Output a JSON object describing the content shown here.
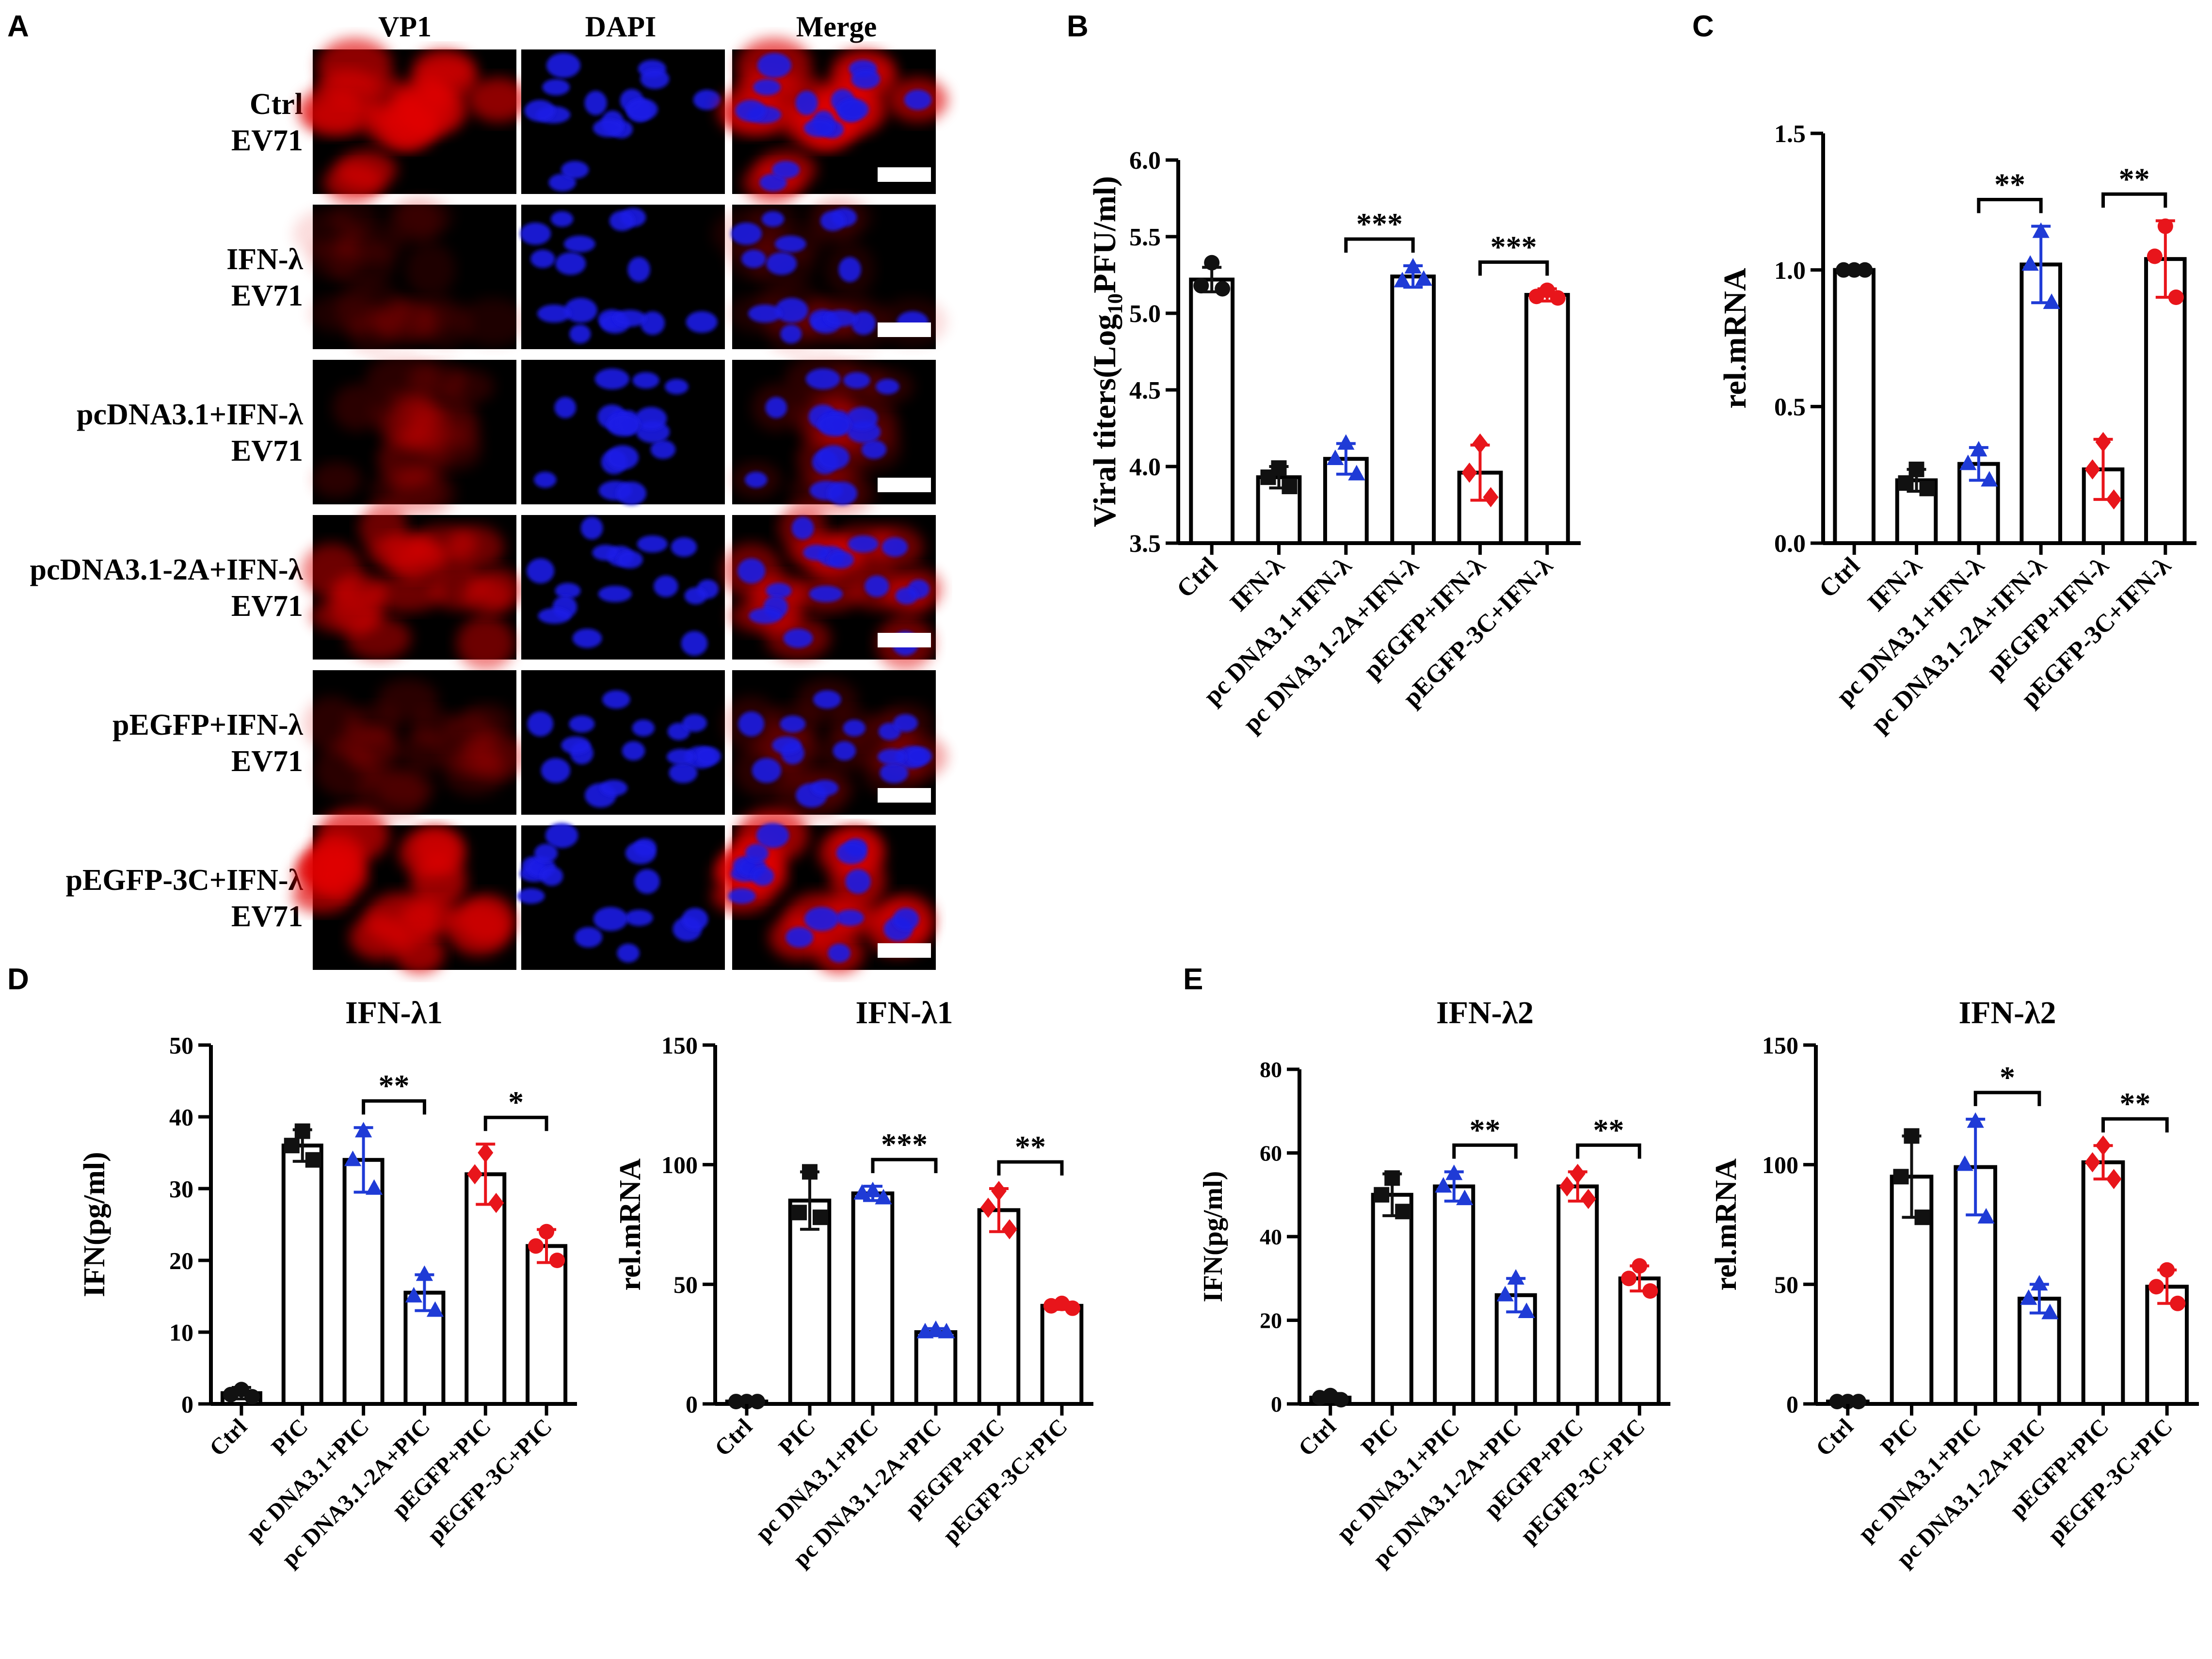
{
  "panel_letters": [
    "A",
    "B",
    "C",
    "D",
    "E"
  ],
  "colors": {
    "vp1": "#e00000",
    "dapi": "#1a1ae6",
    "blue_points": "#1f3bd6",
    "red_points": "#e8151b",
    "black_points": "#111111",
    "axes": "#000000"
  },
  "microscopy": {
    "columns": [
      "VP1",
      "DAPI",
      "Merge"
    ],
    "rows": [
      {
        "line1": "Ctrl",
        "line2": "EV71",
        "vp1": 0.85,
        "dapi": 0.9
      },
      {
        "line1": "IFN-λ",
        "line2": "EV71",
        "vp1": 0.18,
        "dapi": 0.9
      },
      {
        "line1": "pcDNA3.1+IFN-λ",
        "line2": "EV71",
        "vp1": 0.25,
        "dapi": 0.9
      },
      {
        "line1": "pcDNA3.1-2A+IFN-λ",
        "line2": "EV71",
        "vp1": 0.65,
        "dapi": 0.9
      },
      {
        "line1": "pEGFP+IFN-λ",
        "line2": "EV71",
        "vp1": 0.25,
        "dapi": 0.9
      },
      {
        "line1": "pEGFP-3C+IFN-λ",
        "line2": "EV71",
        "vp1": 0.9,
        "dapi": 0.9
      }
    ]
  },
  "chart_data": [
    {
      "panel": "B",
      "type": "bar",
      "title": "",
      "ylabel": "Viral titers(Log10PFU/ml)",
      "ylabel_parts": [
        "Viral titers(Log",
        "10",
        "PFU/ml)"
      ],
      "ylim": [
        3.5,
        6.0
      ],
      "yticks": [
        3.5,
        4.0,
        4.5,
        5.0,
        5.5,
        6.0
      ],
      "ytick_labels": [
        "3.5",
        "4.0",
        "4.5",
        "5.0",
        "5.5",
        "6.0"
      ],
      "categories": [
        "Ctrl",
        "IFN-λ",
        "pc DNA3.1+IFN-λ",
        "pc DNA3.1-2A+IFN-λ",
        "pEGFP+IFN-λ",
        "pEGFP-3C+IFN-λ"
      ],
      "values": [
        5.22,
        3.93,
        4.05,
        5.24,
        3.96,
        5.12
      ],
      "errors": [
        0.08,
        0.07,
        0.1,
        0.07,
        0.18,
        0.04
      ],
      "points": [
        [
          5.33,
          5.18,
          5.16
        ],
        [
          3.99,
          3.93,
          3.87
        ],
        [
          4.15,
          4.05,
          3.95
        ],
        [
          5.3,
          5.21,
          5.22
        ],
        [
          4.15,
          3.96,
          3.8
        ],
        [
          5.15,
          5.11,
          5.1
        ]
      ],
      "point_colors": [
        "black",
        "black",
        "blue",
        "blue",
        "red",
        "red"
      ],
      "point_shapes": [
        "circle",
        "square",
        "triangle",
        "triangle",
        "diamond",
        "circle"
      ],
      "significance": [
        {
          "from": 3,
          "to": 4,
          "label": "***"
        },
        {
          "from": 5,
          "to": 6,
          "label": "***"
        }
      ]
    },
    {
      "panel": "C",
      "type": "bar",
      "title": "",
      "ylabel": "rel.mRNA",
      "ylim": [
        0.0,
        1.5
      ],
      "yticks": [
        0.0,
        0.5,
        1.0,
        1.5
      ],
      "ytick_labels": [
        "0.0",
        "0.5",
        "1.0",
        "1.5"
      ],
      "categories": [
        "Ctrl",
        "IFN-λ",
        "pc DNA3.1+IFN-λ",
        "pc DNA3.1-2A+IFN-λ",
        "pEGFP+IFN-λ",
        "pEGFP-3C+IFN-λ"
      ],
      "values": [
        1.0,
        0.23,
        0.29,
        1.02,
        0.27,
        1.04
      ],
      "errors": [
        0.01,
        0.04,
        0.06,
        0.14,
        0.11,
        0.14
      ],
      "points": [
        [
          1.0,
          1.0,
          1.0
        ],
        [
          0.27,
          0.22,
          0.2
        ],
        [
          0.34,
          0.29,
          0.23
        ],
        [
          1.14,
          1.02,
          0.88
        ],
        [
          0.37,
          0.27,
          0.16
        ],
        [
          1.16,
          1.05,
          0.9
        ]
      ],
      "point_colors": [
        "black",
        "black",
        "blue",
        "blue",
        "red",
        "red"
      ],
      "point_shapes": [
        "circle",
        "square",
        "triangle",
        "triangle",
        "diamond",
        "circle"
      ],
      "significance": [
        {
          "from": 3,
          "to": 4,
          "label": "**"
        },
        {
          "from": 5,
          "to": 6,
          "label": "**"
        }
      ]
    },
    {
      "panel": "D",
      "type": "bar",
      "title": "IFN-λ1",
      "ylabel": "IFN(pg/ml)",
      "ylim": [
        0,
        50
      ],
      "yticks": [
        0,
        10,
        20,
        30,
        40,
        50
      ],
      "ytick_labels": [
        "0",
        "10",
        "20",
        "30",
        "40",
        "50"
      ],
      "categories": [
        "Ctrl",
        "PIC",
        "pc DNA3.1+PIC",
        "pc DNA3.1-2A+PIC",
        "pEGFP+PIC",
        "pEGFP-3C+PIC"
      ],
      "values": [
        1.5,
        36,
        34,
        15.5,
        32,
        22
      ],
      "errors": [
        0.8,
        2.2,
        4.5,
        2.5,
        4.2,
        2.3
      ],
      "points": [
        [
          2.0,
          1.3,
          1.0
        ],
        [
          38,
          36,
          34
        ],
        [
          38,
          34,
          30
        ],
        [
          18,
          15,
          13
        ],
        [
          35,
          32,
          28
        ],
        [
          24,
          22,
          20
        ]
      ],
      "point_colors": [
        "black",
        "black",
        "blue",
        "blue",
        "red",
        "red"
      ],
      "point_shapes": [
        "circle",
        "square",
        "triangle",
        "triangle",
        "diamond",
        "circle"
      ],
      "significance": [
        {
          "from": 3,
          "to": 4,
          "label": "**"
        },
        {
          "from": 5,
          "to": 6,
          "label": "*"
        }
      ]
    },
    {
      "panel": "D",
      "type": "bar",
      "title": "IFN-λ1",
      "ylabel": "rel.mRNA",
      "ylim": [
        0,
        150
      ],
      "yticks": [
        0,
        50,
        100,
        150
      ],
      "ytick_labels": [
        "0",
        "50",
        "100",
        "150"
      ],
      "categories": [
        "Ctrl",
        "PIC",
        "pc DNA3.1+PIC",
        "pc DNA3.1-2A+PIC",
        "pEGFP+PIC",
        "pEGFP-3C+PIC"
      ],
      "values": [
        1,
        85,
        88,
        30,
        81,
        41
      ],
      "errors": [
        0.5,
        12,
        3,
        1.5,
        9,
        1.5
      ],
      "points": [
        [
          1,
          1,
          1
        ],
        [
          97,
          80,
          78
        ],
        [
          89,
          88,
          86
        ],
        [
          31,
          30,
          30
        ],
        [
          89,
          82,
          73
        ],
        [
          42,
          41,
          40
        ]
      ],
      "point_colors": [
        "black",
        "black",
        "blue",
        "blue",
        "red",
        "red"
      ],
      "point_shapes": [
        "circle",
        "square",
        "triangle",
        "triangle",
        "diamond",
        "circle"
      ],
      "significance": [
        {
          "from": 3,
          "to": 4,
          "label": "***"
        },
        {
          "from": 5,
          "to": 6,
          "label": "**"
        }
      ]
    },
    {
      "panel": "E",
      "type": "bar",
      "title": "IFN-λ2",
      "ylabel": "IFN(pg/ml)",
      "ylim": [
        0,
        80
      ],
      "yticks": [
        0,
        20,
        40,
        60,
        80
      ],
      "ytick_labels": [
        "0",
        "20",
        "40",
        "60",
        "80"
      ],
      "categories": [
        "Ctrl",
        "PIC",
        "pc DNA3.1+PIC",
        "pc DNA3.1-2A+PIC",
        "pEGFP+PIC",
        "pEGFP-3C+PIC"
      ],
      "values": [
        1.5,
        50,
        52,
        26,
        52,
        30
      ],
      "errors": [
        1,
        5,
        3.5,
        4,
        3.5,
        3
      ],
      "points": [
        [
          2,
          1.5,
          1
        ],
        [
          54,
          50,
          46
        ],
        [
          55,
          52,
          49
        ],
        [
          30,
          26,
          22
        ],
        [
          55,
          52,
          49
        ],
        [
          33,
          30,
          27
        ]
      ],
      "point_colors": [
        "black",
        "black",
        "blue",
        "blue",
        "red",
        "red"
      ],
      "point_shapes": [
        "circle",
        "square",
        "triangle",
        "triangle",
        "diamond",
        "circle"
      ],
      "significance": [
        {
          "from": 3,
          "to": 4,
          "label": "**"
        },
        {
          "from": 5,
          "to": 6,
          "label": "**"
        }
      ]
    },
    {
      "panel": "E",
      "type": "bar",
      "title": "IFN-λ2",
      "ylabel": "rel.mRNA",
      "ylim": [
        0,
        150
      ],
      "yticks": [
        0,
        50,
        100,
        150
      ],
      "ytick_labels": [
        "0",
        "50",
        "100",
        "150"
      ],
      "categories": [
        "Ctrl",
        "PIC",
        "pc DNA3.1+PIC",
        "pc DNA3.1-2A+PIC",
        "pEGFP+PIC",
        "pEGFP-3C+PIC"
      ],
      "values": [
        1,
        95,
        99,
        44,
        101,
        49
      ],
      "errors": [
        0.5,
        17,
        20,
        6,
        7,
        7
      ],
      "points": [
        [
          1,
          1,
          1
        ],
        [
          112,
          95,
          78
        ],
        [
          118,
          100,
          78
        ],
        [
          50,
          44,
          38
        ],
        [
          108,
          101,
          94
        ],
        [
          56,
          49,
          42
        ]
      ],
      "point_colors": [
        "black",
        "black",
        "blue",
        "blue",
        "red",
        "red"
      ],
      "point_shapes": [
        "circle",
        "square",
        "triangle",
        "triangle",
        "diamond",
        "circle"
      ],
      "significance": [
        {
          "from": 3,
          "to": 4,
          "label": "*"
        },
        {
          "from": 5,
          "to": 6,
          "label": "**"
        }
      ]
    }
  ]
}
